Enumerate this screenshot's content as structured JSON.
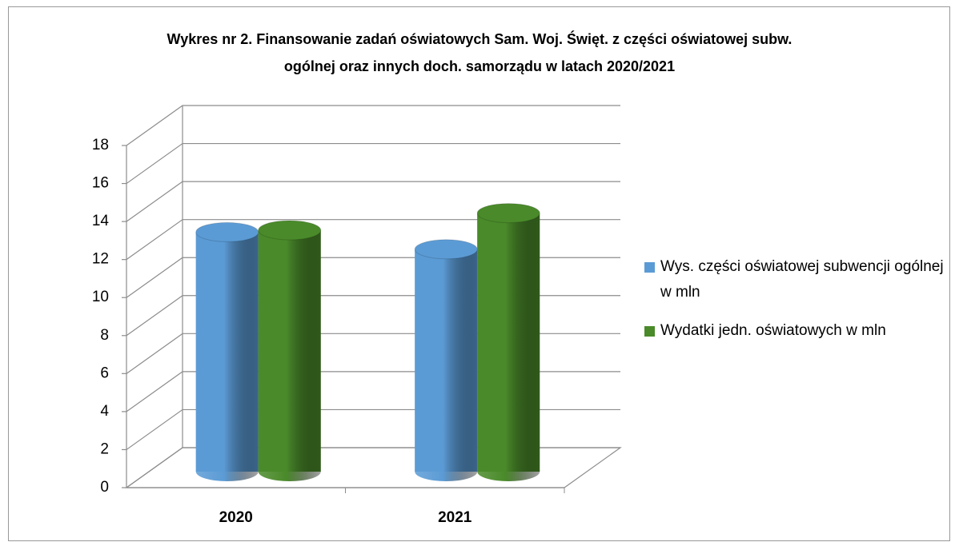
{
  "chart_data": {
    "type": "bar3d",
    "title": "Wykres nr 2. Finansowanie zadań oświatowych Sam. Woj. Święt. z części oświatowej subw. ogólnej oraz innych doch. samorządu w latach 2020/2021",
    "categories": [
      "2020",
      "2021"
    ],
    "series": [
      {
        "name": "Wys. części oświatowej subwencji ogólnej w mln",
        "color": "#5b9bd5",
        "values": [
          12.6,
          11.7
        ]
      },
      {
        "name": "Wydatki jedn. oświatowych w mln",
        "color": "#4a8a2a",
        "values": [
          12.7,
          13.6
        ]
      }
    ],
    "ylim": [
      0,
      18
    ],
    "yticks": [
      0,
      2,
      4,
      6,
      8,
      10,
      12,
      14,
      16,
      18
    ],
    "grid": true,
    "legend": "right"
  }
}
